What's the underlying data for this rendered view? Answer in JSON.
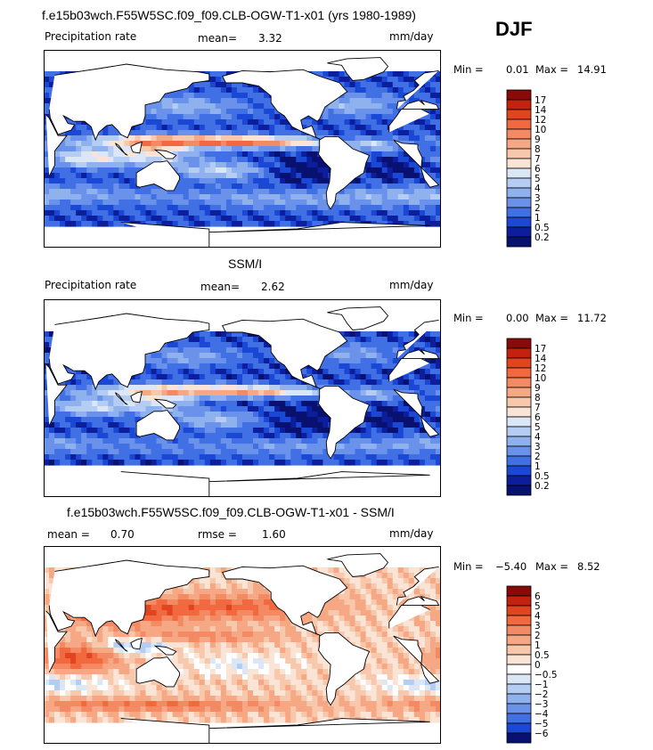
{
  "season": "DJF",
  "panels": [
    {
      "title": "f.e15b03wch.F55W5SC.f09_f09.CLB-OGW-T1-x01 (yrs 1980-1989)",
      "field_label": "Precipitation rate",
      "stat1_label": "mean=",
      "stat1_value": "3.32",
      "stat2_label": "",
      "stat2_value": "",
      "units": "mm/day",
      "min_label": "Min =",
      "min_value": "0.01",
      "max_label": "Max =",
      "max_value": "14.91"
    },
    {
      "title": "SSM/I",
      "field_label": "Precipitation rate",
      "stat1_label": "mean=",
      "stat1_value": "2.62",
      "stat2_label": "",
      "stat2_value": "",
      "units": "mm/day",
      "min_label": "Min =",
      "min_value": "0.00",
      "max_label": "Max =",
      "max_value": "11.72"
    },
    {
      "title": "f.e15b03wch.F55W5SC.f09_f09.CLB-OGW-T1-x01 - SSM/I",
      "field_label": "",
      "stat1_label": "mean =",
      "stat1_value": "0.70",
      "stat2_label": "rmse =",
      "stat2_value": "1.60",
      "units": "mm/day",
      "min_label": "Min =",
      "min_value": "−5.40",
      "max_label": "Max =",
      "max_value": "8.52"
    }
  ],
  "chart_data": [
    {
      "type": "heatmap",
      "title": "f.e15b03wch.F55W5SC.f09_f09.CLB-OGW-T1-x01 (yrs 1980-1989)",
      "field": "Precipitation rate",
      "units": "mm/day",
      "mean": 3.32,
      "min": 0.01,
      "max": 14.91,
      "colorbar_levels": [
        "17",
        "14",
        "12",
        "10",
        "9",
        "8",
        "7",
        "6",
        "5",
        "4",
        "3",
        "2",
        "1",
        "0.5",
        "0.2"
      ],
      "colorbar_colors": [
        "#8a0a0a",
        "#c4210e",
        "#e0451f",
        "#f2683f",
        "#f38a63",
        "#f6a885",
        "#f8c8ad",
        "#fae4d6",
        "#dbe7f7",
        "#b5cdf3",
        "#8fb1ee",
        "#6a92ea",
        "#4170e4",
        "#1a48d4",
        "#0c1e9c",
        "#081070"
      ]
    },
    {
      "type": "heatmap",
      "title": "SSM/I",
      "field": "Precipitation rate",
      "units": "mm/day",
      "mean": 2.62,
      "min": 0.0,
      "max": 11.72,
      "colorbar_levels": [
        "17",
        "14",
        "12",
        "10",
        "9",
        "8",
        "7",
        "6",
        "5",
        "4",
        "3",
        "2",
        "1",
        "0.5",
        "0.2"
      ],
      "colorbar_colors": [
        "#8a0a0a",
        "#c4210e",
        "#e0451f",
        "#f2683f",
        "#f38a63",
        "#f6a885",
        "#f8c8ad",
        "#fae4d6",
        "#dbe7f7",
        "#b5cdf3",
        "#8fb1ee",
        "#6a92ea",
        "#4170e4",
        "#1a48d4",
        "#0c1e9c",
        "#081070"
      ]
    },
    {
      "type": "heatmap",
      "title": "f.e15b03wch.F55W5SC.f09_f09.CLB-OGW-T1-x01 - SSM/I",
      "units": "mm/day",
      "mean": 0.7,
      "rmse": 1.6,
      "min": -5.4,
      "max": 8.52,
      "colorbar_levels": [
        "6",
        "5",
        "4",
        "3",
        "2",
        "1",
        "0.5",
        "0",
        "−0.5",
        "−1",
        "−2",
        "−3",
        "−4",
        "−5",
        "−6"
      ],
      "colorbar_colors": [
        "#8a0a0a",
        "#c4210e",
        "#e0451f",
        "#f2683f",
        "#f38a63",
        "#f6a885",
        "#f8c8ad",
        "#fae4d6",
        "#ffffff",
        "#dbe7f7",
        "#b5cdf3",
        "#8fb1ee",
        "#6a92ea",
        "#4170e4",
        "#1a48d4",
        "#081070"
      ]
    }
  ]
}
